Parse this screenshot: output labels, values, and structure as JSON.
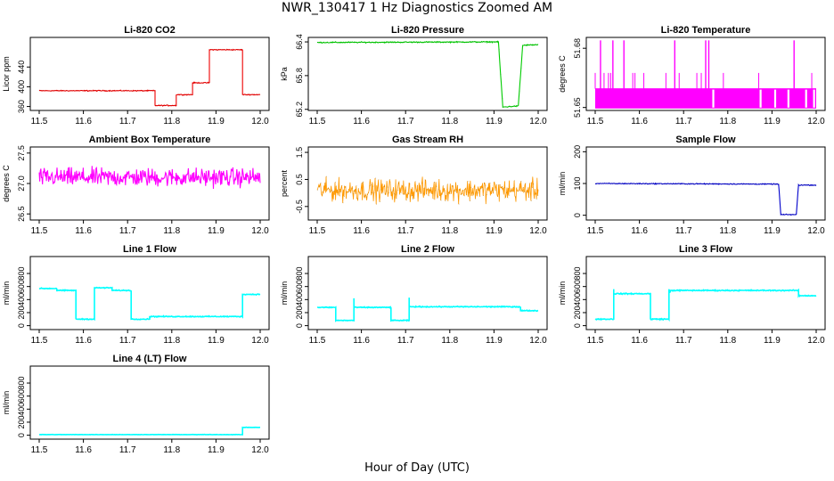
{
  "title": "NWR_130417  1 Hz Diagnostics Zoomed AM",
  "xlabel": "Hour of Day (UTC)",
  "chart_data": [
    {
      "type": "line",
      "title": "Li-820 CO2",
      "ylabel": "Licor ppm",
      "color": "#ee0000",
      "xlim": [
        11.5,
        12.0
      ],
      "ylim": [
        352,
        500
      ],
      "xticks": [
        "11.5",
        "11.6",
        "11.7",
        "11.8",
        "11.9",
        "12.0"
      ],
      "yticks": [
        "360",
        "400",
        "440"
      ],
      "noise": 0.8,
      "series": [
        {
          "x": [
            11.5,
            11.762,
            11.762,
            11.81,
            11.81,
            11.847,
            11.847,
            11.885,
            11.885,
            11.96,
            11.96,
            12.0
          ],
          "y": [
            392,
            392,
            362,
            362,
            384,
            384,
            408,
            408,
            475,
            475,
            384,
            384
          ]
        }
      ]
    },
    {
      "type": "line",
      "title": "Li-820 Pressure",
      "ylabel": "kPa",
      "color": "#00cc00",
      "xlim": [
        11.5,
        12.0
      ],
      "ylim": [
        65.18,
        66.48
      ],
      "xticks": [
        "11.5",
        "11.6",
        "11.7",
        "11.8",
        "11.9",
        "12.0"
      ],
      "yticks": [
        "65.2",
        "65.8",
        "66.4"
      ],
      "noise": 0.008,
      "series": [
        {
          "x": [
            11.5,
            11.91,
            11.92,
            11.955,
            11.965,
            12.0
          ],
          "y": [
            66.39,
            66.4,
            65.24,
            65.26,
            66.34,
            66.35
          ]
        }
      ]
    },
    {
      "type": "line",
      "title": "Li-820 Temperature",
      "ylabel": "degrees C",
      "color": "#ff00ff",
      "xlim": [
        11.5,
        12.0
      ],
      "ylim": [
        51.6485,
        51.6855
      ],
      "xticks": [
        "11.5",
        "11.6",
        "11.7",
        "11.8",
        "11.9",
        "12.0"
      ],
      "yticks": [
        "51.65",
        "51.68"
      ],
      "series": [
        {
          "x": [
            11.5,
            12.0
          ],
          "y": [
            51.66,
            51.66
          ]
        }
      ]
    },
    {
      "type": "line",
      "title": "Ambient Box Temperature",
      "ylabel": "degrees C",
      "color": "#ff00ff",
      "xlim": [
        11.5,
        12.0
      ],
      "ylim": [
        26.4,
        27.6
      ],
      "xticks": [
        "11.5",
        "11.6",
        "11.7",
        "11.8",
        "11.9",
        "12.0"
      ],
      "yticks": [
        "26.5",
        "27.0",
        "27.5"
      ],
      "noise": 0.13,
      "series": [
        {
          "x": [
            11.5,
            12.0
          ],
          "y": [
            27.1,
            27.1
          ]
        }
      ]
    },
    {
      "type": "line",
      "title": "Gas Stream RH",
      "ylabel": "percent",
      "color": "#ff9900",
      "xlim": [
        11.5,
        12.0
      ],
      "ylim": [
        -1.0,
        1.7
      ],
      "xticks": [
        "11.5",
        "11.6",
        "11.7",
        "11.8",
        "11.9",
        "12.0"
      ],
      "yticks": [
        "-0.5",
        "0.5",
        "1.5"
      ],
      "noise": 0.35,
      "series": [
        {
          "x": [
            11.5,
            12.0
          ],
          "y": [
            0.1,
            0.1
          ]
        }
      ]
    },
    {
      "type": "line",
      "title": "Sample Flow",
      "ylabel": "ml/min",
      "color": "#0000cc",
      "xlim": [
        11.5,
        12.0
      ],
      "ylim": [
        -15,
        215
      ],
      "xticks": [
        "11.5",
        "11.6",
        "11.7",
        "11.8",
        "11.9",
        "12.0"
      ],
      "yticks": [
        "0",
        "100",
        "200"
      ],
      "noise": 1.2,
      "series": [
        {
          "x": [
            11.5,
            11.915,
            11.92,
            11.955,
            11.96,
            12.0
          ],
          "y": [
            100,
            98,
            2,
            2,
            95,
            95
          ]
        }
      ]
    },
    {
      "type": "line",
      "title": "Line 1 Flow",
      "ylabel": "ml/min",
      "color": "#00ffff",
      "xlim": [
        11.5,
        12.0
      ],
      "ylim": [
        -60,
        1060
      ],
      "xticks": [
        "11.5",
        "11.6",
        "11.7",
        "11.8",
        "11.9",
        "12.0"
      ],
      "yticks": [
        "0",
        "200",
        "400",
        "600",
        "800"
      ],
      "noise": 6,
      "series": [
        {
          "x": [
            11.5,
            11.54,
            11.54,
            11.583,
            11.583,
            11.625,
            11.625,
            11.665,
            11.665,
            11.708,
            11.708,
            11.75,
            11.75,
            11.96,
            11.96,
            12.0
          ],
          "y": [
            570,
            570,
            540,
            540,
            100,
            100,
            580,
            580,
            540,
            540,
            100,
            100,
            140,
            140,
            480,
            480
          ]
        }
      ]
    },
    {
      "type": "line",
      "title": "Line 2 Flow",
      "ylabel": "ml/min",
      "color": "#00ffff",
      "xlim": [
        11.5,
        12.0
      ],
      "ylim": [
        -60,
        1060
      ],
      "xticks": [
        "11.5",
        "11.6",
        "11.7",
        "11.8",
        "11.9",
        "12.0"
      ],
      "yticks": [
        "0",
        "200",
        "400",
        "600",
        "800"
      ],
      "noise": 6,
      "series": [
        {
          "x": [
            11.5,
            11.542,
            11.542,
            11.583,
            11.583,
            11.583,
            11.667,
            11.667,
            11.708,
            11.708,
            11.708,
            11.96,
            11.96,
            12.0
          ],
          "y": [
            280,
            280,
            80,
            80,
            420,
            280,
            280,
            80,
            80,
            430,
            290,
            290,
            230,
            230
          ]
        }
      ]
    },
    {
      "type": "line",
      "title": "Line 3 Flow",
      "ylabel": "ml/min",
      "color": "#00ffff",
      "xlim": [
        11.5,
        12.0
      ],
      "ylim": [
        -60,
        1060
      ],
      "xticks": [
        "11.5",
        "11.6",
        "11.7",
        "11.8",
        "11.9",
        "12.0"
      ],
      "yticks": [
        "0",
        "200",
        "400",
        "600",
        "800"
      ],
      "noise": 7,
      "series": [
        {
          "x": [
            11.5,
            11.542,
            11.542,
            11.542,
            11.625,
            11.625,
            11.667,
            11.667,
            11.667,
            11.67,
            11.67,
            11.96,
            11.96,
            12.0
          ],
          "y": [
            100,
            100,
            560,
            490,
            490,
            100,
            100,
            560,
            510,
            510,
            540,
            540,
            460,
            460
          ]
        }
      ]
    },
    {
      "type": "line",
      "title": "Line 4 (LT) Flow",
      "ylabel": "ml/min",
      "color": "#00ffff",
      "xlim": [
        11.5,
        12.0
      ],
      "ylim": [
        -60,
        1060
      ],
      "xticks": [
        "11.5",
        "11.6",
        "11.7",
        "11.8",
        "11.9",
        "12.0"
      ],
      "yticks": [
        "0",
        "200",
        "400",
        "600",
        "800"
      ],
      "noise": 2,
      "series": [
        {
          "x": [
            11.5,
            11.96,
            11.96,
            12.0
          ],
          "y": [
            10,
            10,
            120,
            120
          ]
        }
      ]
    }
  ]
}
